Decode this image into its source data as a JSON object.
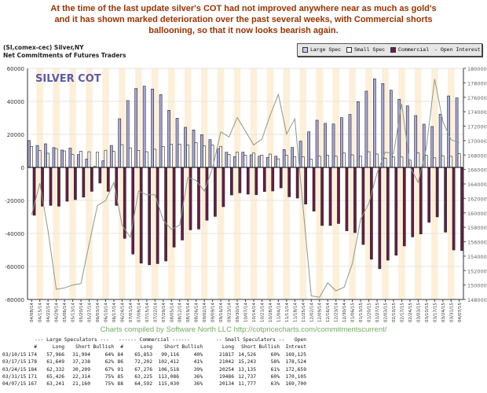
{
  "headline": [
    "At the time of the last update silver's COT had not improved anywhere near as much as gold's",
    "and it has shown marked deterioration over the past several weeks, with Commercial shorts",
    "ballooning, so that it now looks bearish again."
  ],
  "chart_data": {
    "type": "bar",
    "title": "SILVER COT",
    "subtitle": [
      "(SI,comex-cec) Silver,NY",
      "Net Commitments of Futures Traders"
    ],
    "legend": [
      "Large Spec",
      "Small Spec",
      "Commercial",
      "Open Interest"
    ],
    "legend_placement": "top-right",
    "colors": {
      "large": "#a9a9dc",
      "small": "#ffffff",
      "commercial": "#6a1d45",
      "oi": "#8a9a8a",
      "stripe": "#fdefd8"
    },
    "ylim_left": [
      -80000,
      60000
    ],
    "yticks_left": [
      "60000",
      "40000",
      "20000",
      "0",
      "-20000",
      "-40000",
      "-60000",
      "-80000"
    ],
    "ylim_right": [
      148000,
      180000
    ],
    "yticks_right": [
      "180000",
      "178000",
      "176000",
      "174000",
      "172000",
      "170000",
      "168000",
      "166000",
      "164000",
      "162000",
      "160000",
      "158000",
      "156000",
      "154000",
      "152000",
      "150000",
      "148000"
    ],
    "categories": [
      "04/08/14",
      "04/15/14",
      "04/22/14",
      "04/29/14",
      "05/06/14",
      "05/13/14",
      "05/20/14",
      "05/27/14",
      "06/03/14",
      "06/10/14",
      "06/17/14",
      "06/24/14",
      "07/01/14",
      "07/08/14",
      "07/15/14",
      "07/22/14",
      "07/29/14",
      "08/05/14",
      "08/12/14",
      "08/19/14",
      "08/26/14",
      "09/02/14",
      "09/09/14",
      "09/16/14",
      "09/23/14",
      "09/30/14",
      "10/07/14",
      "10/14/14",
      "10/21/14",
      "10/28/14",
      "11/04/14",
      "11/11/14",
      "11/18/14",
      "11/25/14",
      "12/02/14",
      "12/09/14",
      "12/16/14",
      "12/23/14",
      "12/30/14",
      "01/06/15",
      "01/13/15",
      "01/20/15",
      "01/27/15",
      "02/03/15",
      "02/10/15",
      "02/17/15",
      "02/24/15",
      "03/03/15",
      "03/10/15",
      "03/17/15",
      "03/24/15",
      "03/31/15",
      "04/07/15"
    ],
    "series": [
      {
        "name": "Large Spec",
        "axis": "left",
        "values": [
          16300,
          13300,
          14300,
          12000,
          10500,
          11700,
          7800,
          5000,
          600,
          4000,
          13300,
          29500,
          40500,
          47800,
          49200,
          47500,
          44100,
          34600,
          29800,
          24300,
          22700,
          19800,
          16800,
          11300,
          9200,
          6500,
          9200,
          7600,
          6800,
          6000,
          6800,
          10800,
          12100,
          15900,
          21600,
          28600,
          26700,
          26300,
          30200,
          32100,
          39800,
          46200,
          53700,
          50800,
          46800,
          41300,
          37300,
          31400,
          26200,
          24800,
          32200,
          43300,
          42100
        ]
      },
      {
        "name": "Small Spec",
        "axis": "left",
        "values": [
          12700,
          10300,
          8600,
          11400,
          10000,
          7800,
          9800,
          9500,
          9200,
          10400,
          9700,
          13800,
          11800,
          10300,
          9500,
          11000,
          12700,
          14000,
          14000,
          13500,
          15000,
          13000,
          13600,
          12700,
          7900,
          9200,
          7300,
          8700,
          7500,
          8100,
          5200,
          7300,
          6500,
          6500,
          4900,
          6800,
          7300,
          6800,
          8700,
          7600,
          6800,
          9500,
          8100,
          5600,
          6500,
          6300,
          4400,
          8700,
          7300,
          5800,
          7100,
          6700,
          8400
        ]
      },
      {
        "name": "Commercial",
        "axis": "left",
        "values": [
          -29000,
          -23500,
          -23000,
          -23500,
          -20500,
          -19500,
          -18000,
          -14500,
          -9500,
          -14500,
          -23000,
          -43000,
          -52500,
          -58000,
          -59000,
          -58300,
          -56700,
          -48300,
          -44000,
          -37800,
          -37300,
          -32000,
          -29700,
          -23800,
          -16700,
          -15400,
          -16200,
          -16500,
          -14600,
          -14300,
          -12400,
          -17800,
          -18600,
          -22200,
          -26500,
          -35200,
          -35200,
          -34000,
          -38400,
          -39500,
          -46700,
          -55600,
          -61400,
          -56200,
          -53200,
          -47600,
          -42100,
          -40300,
          -33300,
          -30000,
          -39200,
          -50000,
          -50400
        ]
      },
      {
        "name": "Open Interest",
        "axis": "right",
        "values": [
          159700,
          164100,
          157500,
          149400,
          149600,
          150000,
          150200,
          155700,
          161000,
          161700,
          164200,
          158300,
          156600,
          163000,
          162500,
          162500,
          159000,
          157700,
          158300,
          164900,
          164500,
          163000,
          166200,
          171200,
          170500,
          173200,
          171300,
          169400,
          170200,
          173500,
          176400,
          170900,
          173000,
          160800,
          148500,
          148300,
          150300,
          149200,
          149700,
          153000,
          159100,
          161300,
          165500,
          168400,
          168200,
          175100,
          166400,
          164200,
          169125,
          178524,
          172659,
          170105,
          169700
        ]
      }
    ],
    "credit": "Charts compiled by Software North LLC  http://cotpricecharts.com/commitmentscurrent/"
  },
  "table": {
    "group_headers": [
      "--- Large Speculators ---",
      "------ Commercial ------",
      "-- Small Speculators --",
      "Open"
    ],
    "columns": [
      "#",
      "Long",
      "Short",
      "Bullish",
      "#",
      "Long",
      "Short",
      "Bullish",
      "Long",
      "Short",
      "Bullish",
      "Intrest"
    ],
    "rows": [
      [
        "03/10/15",
        "174",
        "57,966",
        "31,994",
        "64%",
        "84",
        "65,853",
        "99,116",
        "40%",
        "21817",
        "14,526",
        "60%",
        "169,125"
      ],
      [
        "03/17/15",
        "178",
        "61,649",
        "37,238",
        "62%",
        "86",
        "72,202",
        "102,412",
        "41%",
        "21042",
        "15,243",
        "58%",
        "178,524"
      ],
      [
        "03/24/15",
        "184",
        "62,332",
        "30,209",
        "67%",
        "91",
        "67,276",
        "106,518",
        "39%",
        "20254",
        "13,135",
        "61%",
        "172,659"
      ],
      [
        "03/31/15",
        "171",
        "65,426",
        "22,314",
        "75%",
        "85",
        "63,225",
        "113,086",
        "36%",
        "19486",
        "12,737",
        "60%",
        "170,105"
      ],
      [
        "04/07/15",
        "167",
        "63,241",
        "21,160",
        "75%",
        "88",
        "64,592",
        "115,030",
        "36%",
        "20134",
        "11,777",
        "63%",
        "169,700"
      ]
    ]
  }
}
